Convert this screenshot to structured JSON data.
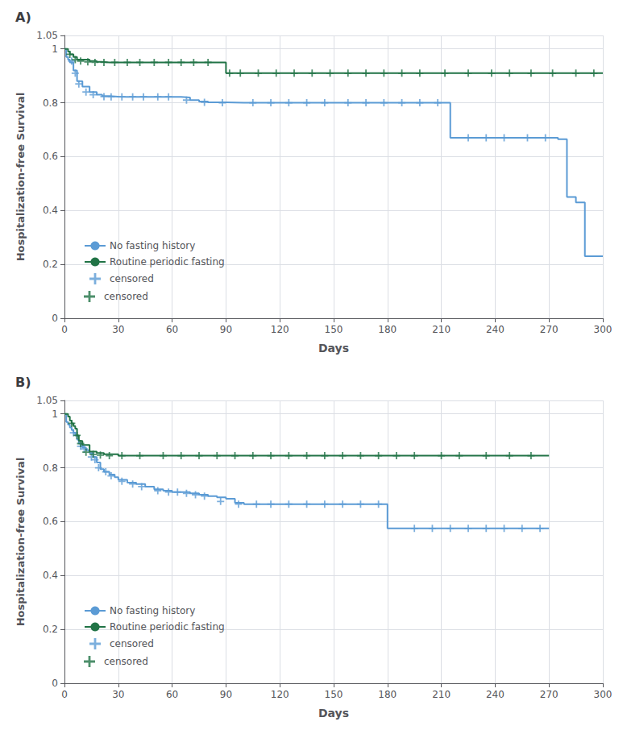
{
  "chart_data": [
    {
      "type": "step",
      "title": "A)",
      "xlabel": "Days",
      "ylabel": "Hospitalization-free Survival",
      "xlim": [
        0,
        300
      ],
      "ylim": [
        0.0,
        1.05
      ],
      "xticks": [
        0,
        30,
        60,
        90,
        120,
        150,
        180,
        210,
        240,
        270,
        300
      ],
      "yticks": [
        0.0,
        0.2,
        0.4,
        0.6,
        0.8,
        1.0
      ],
      "grid": true,
      "legend": "lower left",
      "series": [
        {
          "name": "No fasting history",
          "color": "#5B9BD5",
          "x": [
            0,
            1,
            2,
            3,
            5,
            7,
            10,
            14,
            18,
            21,
            25,
            30,
            35,
            40,
            45,
            50,
            55,
            60,
            65,
            70,
            75,
            80,
            85,
            90,
            100,
            110,
            120,
            130,
            140,
            150,
            160,
            170,
            180,
            190,
            200,
            210,
            215,
            220,
            230,
            240,
            250,
            260,
            270,
            275,
            280,
            285,
            290,
            295,
            300
          ],
          "values": [
            1.0,
            0.97,
            0.96,
            0.95,
            0.92,
            0.88,
            0.86,
            0.84,
            0.83,
            0.825,
            0.823,
            0.822,
            0.822,
            0.822,
            0.822,
            0.822,
            0.822,
            0.822,
            0.82,
            0.81,
            0.805,
            0.802,
            0.802,
            0.8,
            0.8,
            0.8,
            0.8,
            0.8,
            0.8,
            0.8,
            0.8,
            0.8,
            0.8,
            0.8,
            0.8,
            0.8,
            0.67,
            0.67,
            0.67,
            0.67,
            0.67,
            0.67,
            0.67,
            0.665,
            0.45,
            0.43,
            0.23,
            0.23,
            0.23
          ]
        },
        {
          "name": "Routine periodic fasting",
          "color": "#217346",
          "x": [
            0,
            1,
            2,
            3,
            5,
            7,
            10,
            14,
            18,
            21,
            25,
            30,
            40,
            50,
            60,
            70,
            80,
            85,
            90,
            95,
            100,
            110,
            120,
            125,
            130,
            140,
            150,
            155,
            160,
            170,
            180,
            190,
            200,
            210,
            215,
            220,
            230,
            240,
            250,
            260,
            270,
            275,
            280,
            290,
            295,
            300
          ],
          "values": [
            1.0,
            1.0,
            0.99,
            0.98,
            0.97,
            0.96,
            0.96,
            0.955,
            0.952,
            0.95,
            0.95,
            0.95,
            0.95,
            0.95,
            0.95,
            0.95,
            0.95,
            0.95,
            0.91,
            0.91,
            0.91,
            0.91,
            0.91,
            0.91,
            0.91,
            0.91,
            0.91,
            0.91,
            0.91,
            0.91,
            0.91,
            0.91,
            0.91,
            0.91,
            0.91,
            0.91,
            0.91,
            0.91,
            0.91,
            0.91,
            0.91,
            0.91,
            0.91,
            0.91,
            0.91,
            0.91
          ]
        },
        {
          "name": "censored",
          "type": "scatter",
          "marker": "plus",
          "color": "#5B9BD5",
          "x": [
            4,
            6,
            8,
            12,
            16,
            22,
            26,
            32,
            38,
            44,
            52,
            58,
            68,
            78,
            88,
            105,
            115,
            125,
            135,
            145,
            158,
            168,
            178,
            188,
            198,
            208,
            225,
            235,
            245,
            258,
            268
          ],
          "values": [
            0.955,
            0.91,
            0.87,
            0.84,
            0.83,
            0.823,
            0.822,
            0.822,
            0.822,
            0.822,
            0.822,
            0.822,
            0.81,
            0.802,
            0.8,
            0.8,
            0.8,
            0.8,
            0.8,
            0.8,
            0.8,
            0.8,
            0.8,
            0.8,
            0.8,
            0.8,
            0.67,
            0.67,
            0.67,
            0.67,
            0.67
          ]
        },
        {
          "name": "censored",
          "type": "scatter",
          "marker": "plus",
          "color": "#217346",
          "x": [
            3,
            6,
            9,
            13,
            17,
            22,
            28,
            35,
            42,
            50,
            58,
            65,
            72,
            80,
            92,
            98,
            108,
            118,
            128,
            138,
            148,
            158,
            168,
            178,
            188,
            198,
            212,
            225,
            238,
            248,
            260,
            272,
            285,
            295
          ],
          "values": [
            0.98,
            0.96,
            0.955,
            0.952,
            0.95,
            0.95,
            0.95,
            0.95,
            0.95,
            0.95,
            0.95,
            0.95,
            0.95,
            0.95,
            0.91,
            0.91,
            0.91,
            0.91,
            0.91,
            0.91,
            0.91,
            0.91,
            0.91,
            0.91,
            0.91,
            0.91,
            0.91,
            0.91,
            0.91,
            0.91,
            0.91,
            0.91,
            0.91,
            0.91
          ]
        }
      ]
    },
    {
      "type": "step",
      "title": "B)",
      "xlabel": "Days",
      "ylabel": "Hospitalization-free Survival",
      "xlim": [
        0,
        300
      ],
      "ylim": [
        0.0,
        1.05
      ],
      "xticks": [
        0,
        30,
        60,
        90,
        120,
        150,
        180,
        210,
        240,
        270,
        300
      ],
      "yticks": [
        0.0,
        0.2,
        0.4,
        0.6,
        0.8,
        1.0
      ],
      "grid": true,
      "legend": "lower left",
      "series": [
        {
          "name": "No fasting history",
          "color": "#5B9BD5",
          "x": [
            0,
            1,
            2,
            3,
            4,
            5,
            6,
            7,
            8,
            10,
            12,
            14,
            16,
            18,
            20,
            22,
            25,
            28,
            30,
            35,
            40,
            45,
            50,
            55,
            60,
            65,
            70,
            75,
            80,
            85,
            90,
            95,
            100,
            110,
            120,
            130,
            140,
            150,
            160,
            170,
            175,
            180,
            185,
            190,
            200,
            210,
            220,
            230,
            240,
            250,
            260,
            270
          ],
          "values": [
            1.0,
            0.97,
            0.96,
            0.95,
            0.94,
            0.93,
            0.92,
            0.905,
            0.89,
            0.875,
            0.865,
            0.855,
            0.84,
            0.82,
            0.795,
            0.785,
            0.775,
            0.765,
            0.755,
            0.745,
            0.74,
            0.73,
            0.72,
            0.715,
            0.71,
            0.71,
            0.705,
            0.7,
            0.695,
            0.69,
            0.685,
            0.67,
            0.665,
            0.665,
            0.665,
            0.665,
            0.665,
            0.665,
            0.665,
            0.665,
            0.665,
            0.575,
            0.575,
            0.575,
            0.575,
            0.575,
            0.575,
            0.575,
            0.575,
            0.575,
            0.575,
            0.575
          ]
        },
        {
          "name": "Routine periodic fasting",
          "color": "#217346",
          "x": [
            0,
            1,
            2,
            3,
            4,
            5,
            6,
            7,
            8,
            10,
            14,
            18,
            22,
            30,
            40,
            50,
            60,
            70,
            80,
            90,
            100,
            110,
            120,
            130,
            140,
            150,
            160,
            170,
            180,
            190,
            200,
            210,
            220,
            230,
            240,
            250,
            260,
            270
          ],
          "values": [
            1.0,
            1.0,
            0.99,
            0.975,
            0.965,
            0.955,
            0.945,
            0.92,
            0.9,
            0.885,
            0.86,
            0.855,
            0.85,
            0.845,
            0.845,
            0.845,
            0.845,
            0.845,
            0.845,
            0.845,
            0.845,
            0.845,
            0.845,
            0.845,
            0.845,
            0.845,
            0.845,
            0.845,
            0.845,
            0.845,
            0.845,
            0.845,
            0.845,
            0.845,
            0.845,
            0.845,
            0.845,
            0.845
          ]
        },
        {
          "name": "censored",
          "type": "scatter",
          "marker": "plus",
          "color": "#5B9BD5",
          "x": [
            5,
            9,
            11,
            15,
            17,
            19,
            23,
            26,
            32,
            38,
            43,
            52,
            58,
            63,
            68,
            73,
            78,
            87,
            97,
            107,
            115,
            125,
            135,
            145,
            155,
            165,
            175,
            195,
            205,
            215,
            225,
            235,
            245,
            255,
            265
          ],
          "values": [
            0.93,
            0.88,
            0.87,
            0.84,
            0.83,
            0.8,
            0.785,
            0.77,
            0.75,
            0.74,
            0.73,
            0.715,
            0.71,
            0.71,
            0.705,
            0.7,
            0.695,
            0.675,
            0.665,
            0.665,
            0.665,
            0.665,
            0.665,
            0.665,
            0.665,
            0.665,
            0.665,
            0.575,
            0.575,
            0.575,
            0.575,
            0.575,
            0.575,
            0.575,
            0.575
          ]
        },
        {
          "name": "censored",
          "type": "scatter",
          "marker": "plus",
          "color": "#217346",
          "x": [
            4,
            7,
            9,
            12,
            16,
            20,
            25,
            32,
            42,
            55,
            65,
            75,
            85,
            95,
            105,
            115,
            125,
            135,
            145,
            155,
            165,
            175,
            185,
            195,
            210,
            220,
            235,
            248,
            260
          ],
          "values": [
            0.965,
            0.92,
            0.89,
            0.858,
            0.85,
            0.847,
            0.845,
            0.845,
            0.845,
            0.845,
            0.845,
            0.845,
            0.845,
            0.845,
            0.845,
            0.845,
            0.845,
            0.845,
            0.845,
            0.845,
            0.845,
            0.845,
            0.845,
            0.845,
            0.845,
            0.845,
            0.845,
            0.845,
            0.845
          ]
        }
      ]
    }
  ]
}
